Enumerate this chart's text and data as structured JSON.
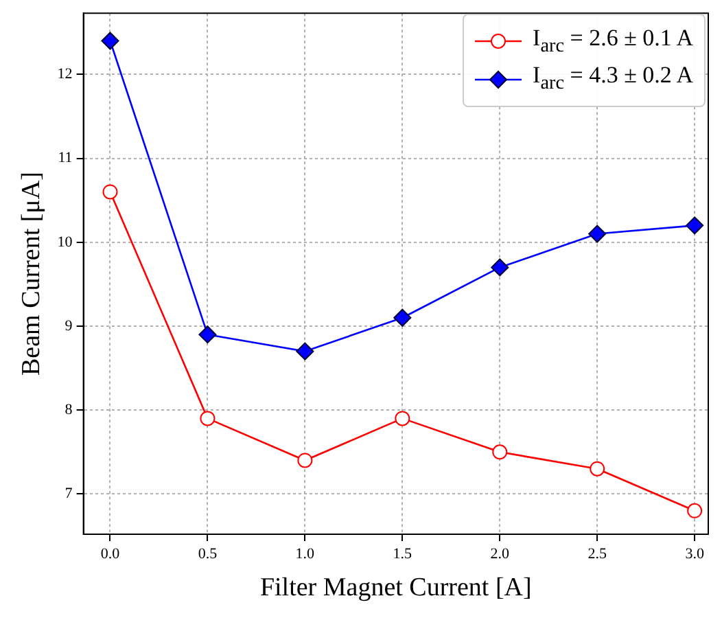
{
  "chart_data": {
    "type": "line",
    "xlabel": "Filter Magnet Current [A]",
    "ylabel": "Beam Current [μA]",
    "x": [
      0,
      0.5,
      1,
      1.5,
      2,
      2.5,
      3
    ],
    "series": [
      {
        "name": "I$_{arc}$ = 2.6 ± 0.1 A",
        "color": "#ff0000",
        "marker": "circle",
        "values": [
          10.6,
          7.9,
          7.4,
          7.9,
          7.5,
          7.3,
          6.8
        ]
      },
      {
        "name": "I$_{arc}$ = 4.3 ± 0.2 A",
        "color": "#0000ff",
        "marker": "diamond",
        "values": [
          12.4,
          8.9,
          8.7,
          9.1,
          9.7,
          10.1,
          10.2
        ]
      }
    ],
    "xlim": [
      -0.137,
      3.07
    ],
    "ylim": [
      6.52,
      12.73
    ],
    "xticks": [
      {
        "value": 0,
        "label": "0.0"
      },
      0.5,
      {
        "value": 1,
        "label": "1.0"
      },
      1.5,
      {
        "value": 2,
        "label": "2.0"
      },
      2.5,
      {
        "value": 3,
        "label": "3.0"
      }
    ],
    "yticks": [
      7,
      8,
      9,
      10,
      11,
      12
    ],
    "grid": true,
    "legend": "top right",
    "line_style": "solid"
  }
}
